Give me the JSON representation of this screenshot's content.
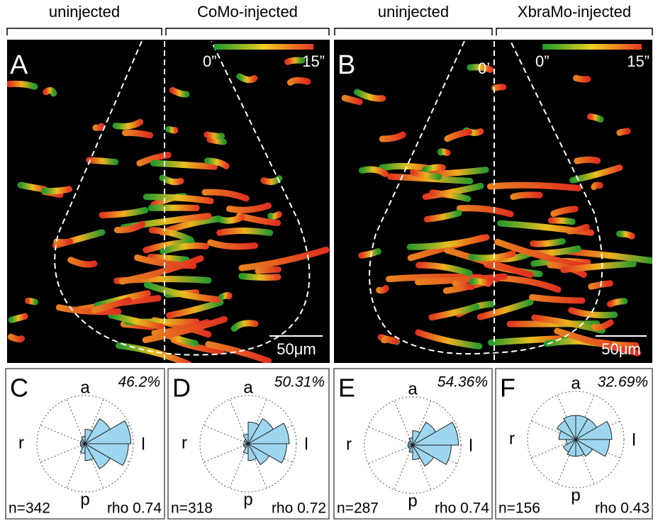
{
  "header": {
    "labels": [
      "uninjected",
      "CoMo-injected",
      "uninjected",
      "XbraMo-injected"
    ]
  },
  "panels": [
    {
      "letter": "A",
      "colorbar": {
        "min_label": "0”",
        "max_label": "15”"
      },
      "scale_bar": "50μm"
    },
    {
      "letter": "B",
      "time": "0’",
      "colorbar": {
        "min_label": "0”",
        "max_label": "15”"
      },
      "scale_bar": "50μm"
    }
  ],
  "roses": [
    {
      "letter": "C",
      "percent": "46.2%",
      "a": "a",
      "r": "r",
      "l": "l",
      "p": "p",
      "n": "n=342",
      "rho": "rho 0.74",
      "sectors": [
        0.95,
        0.6,
        0.3,
        0.15,
        0.1,
        0.1,
        0.1,
        0.1,
        0.2,
        0.35,
        0.6,
        0.9
      ]
    },
    {
      "letter": "D",
      "percent": "50.31%",
      "a": "a",
      "r": "r",
      "l": "l",
      "p": "p",
      "n": "n=318",
      "rho": "rho 0.72",
      "sectors": [
        0.85,
        0.6,
        0.45,
        0.2,
        0.1,
        0.05,
        0.1,
        0.1,
        0.2,
        0.35,
        0.5,
        0.8
      ]
    },
    {
      "letter": "E",
      "percent": "54.36%",
      "a": "a",
      "r": "r",
      "l": "l",
      "p": "p",
      "n": "n=287",
      "rho": "rho 0.74",
      "sectors": [
        0.95,
        0.55,
        0.3,
        0.15,
        0.1,
        0.1,
        0.1,
        0.1,
        0.15,
        0.3,
        0.5,
        0.8
      ]
    },
    {
      "letter": "F",
      "percent": "32.69%",
      "a": "a",
      "r": "r",
      "l": "l",
      "p": "p",
      "n": "n=156",
      "rho": "rho 0.43",
      "sectors": [
        0.75,
        0.5,
        0.5,
        0.5,
        0.45,
        0.35,
        0.2,
        0.3,
        0.35,
        0.35,
        0.4,
        0.7
      ]
    }
  ]
}
